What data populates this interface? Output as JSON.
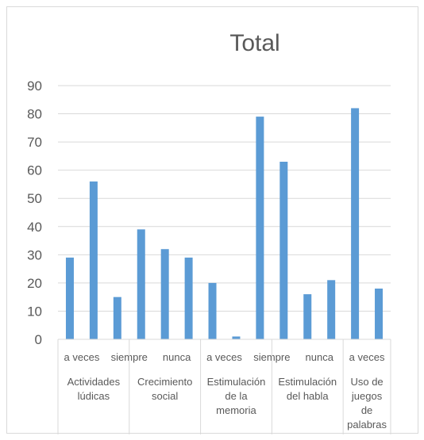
{
  "chart_data": {
    "type": "bar",
    "title": "Total",
    "ylim": [
      0,
      90
    ],
    "yticks": [
      0,
      10,
      20,
      30,
      40,
      50,
      60,
      70,
      80,
      90
    ],
    "grid": true,
    "legend": "none",
    "bar_color": "#5b9bd5",
    "categories": [
      "a veces",
      "siempre",
      "nunca",
      "a veces",
      "siempre",
      "nunca",
      "a veces",
      "siempre",
      "nunca",
      "a veces",
      "siempre",
      "nunca",
      "a veces",
      "siempre"
    ],
    "values": [
      29,
      56,
      15,
      39,
      32,
      29,
      20,
      1,
      79,
      63,
      16,
      21,
      82,
      18
    ],
    "shown_tick_labels": [
      "a veces",
      "siempre",
      "nunca",
      "a veces",
      "siempre",
      "nunca",
      "a veces"
    ],
    "groups": [
      {
        "label_lines": [
          "Actividades",
          "lúdicas"
        ],
        "span": 3
      },
      {
        "label_lines": [
          "Crecimiento",
          "social"
        ],
        "span": 3
      },
      {
        "label_lines": [
          "Estimulación",
          "de la",
          "memoria"
        ],
        "span": 3
      },
      {
        "label_lines": [
          "Estimulación",
          "del habla"
        ],
        "span": 3
      },
      {
        "label_lines": [
          "Uso de",
          "juegos",
          "de",
          "palabras"
        ],
        "span": 2
      }
    ]
  }
}
